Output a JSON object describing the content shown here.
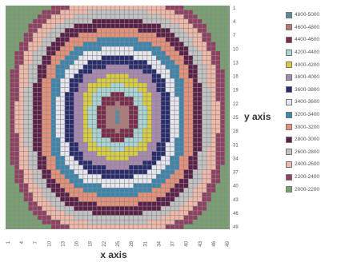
{
  "chart_data": {
    "type": "heatmap",
    "title": "",
    "xlabel": "x axis",
    "ylabel": "y axis",
    "x_ticks": [
      "1",
      "4",
      "7",
      "10",
      "13",
      "16",
      "19",
      "22",
      "25",
      "28",
      "31",
      "34",
      "37",
      "40",
      "43",
      "46",
      "49"
    ],
    "y_ticks": [
      "1",
      "4",
      "7",
      "10",
      "13",
      "16",
      "19",
      "22",
      "25",
      "28",
      "31",
      "34",
      "37",
      "40",
      "43",
      "46",
      "49"
    ],
    "grid_size": [
      49,
      49
    ],
    "grid": true,
    "legend_position": "right",
    "peak": {
      "x": 25,
      "y": 25,
      "value": 4900
    },
    "levels": [
      {
        "label": "4800-5000",
        "color": "#5c8a9a"
      },
      {
        "label": "4600-4800",
        "color": "#b07a7a"
      },
      {
        "label": "4400-4600",
        "color": "#7a2c4a"
      },
      {
        "label": "4200-4400",
        "color": "#a8d4d4"
      },
      {
        "label": "4000-4200",
        "color": "#d8cc40"
      },
      {
        "label": "3800-4000",
        "color": "#a888b0"
      },
      {
        "label": "3600-3800",
        "color": "#282c6e"
      },
      {
        "label": "3400-3600",
        "color": "#e6e6ee"
      },
      {
        "label": "3200-3400",
        "color": "#3c86ae"
      },
      {
        "label": "3000-3200",
        "color": "#e6907a"
      },
      {
        "label": "2800-3000",
        "color": "#5c2048"
      },
      {
        "label": "2600-2800",
        "color": "#c2c2c2"
      },
      {
        "label": "2400-2600",
        "color": "#f0b8a8"
      },
      {
        "label": "2200-2400",
        "color": "#904060"
      },
      {
        "label": "2000-2200",
        "color": "#78a070"
      }
    ]
  }
}
